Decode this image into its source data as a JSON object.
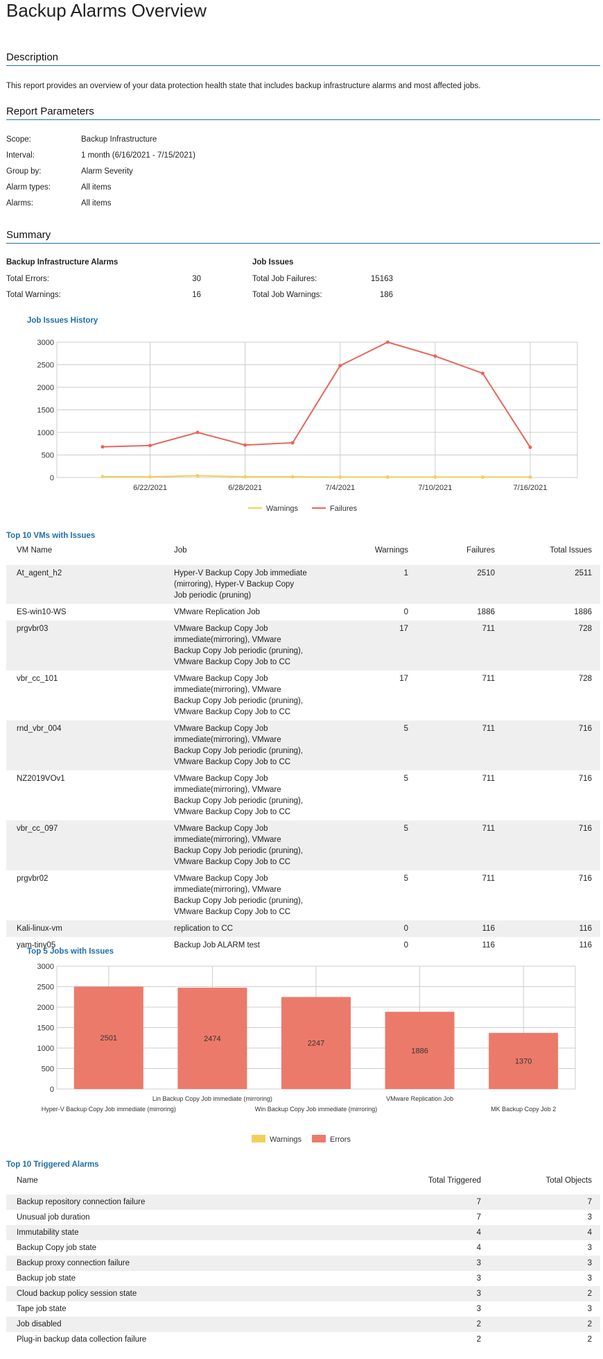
{
  "title": "Backup Alarms Overview",
  "description": {
    "heading": "Description",
    "text": "This report provides an overview of your data protection health state that includes backup infrastructure alarms and most affected jobs."
  },
  "parameters": {
    "heading": "Report Parameters",
    "items": [
      {
        "label": "Scope:",
        "value": "Backup Infrastructure"
      },
      {
        "label": "Interval:",
        "value": "1 month (6/16/2021 - 7/15/2021)"
      },
      {
        "label": "Group by:",
        "value": "Alarm Severity"
      },
      {
        "label": "Alarm types:",
        "value": "All items"
      },
      {
        "label": "Alarms:",
        "value": "All items"
      }
    ]
  },
  "summary": {
    "heading": "Summary",
    "infra": {
      "title": "Backup Infrastructure Alarms",
      "errors_label": "Total Errors:",
      "errors": "30",
      "warnings_label": "Total Warnings:",
      "warnings": "16"
    },
    "jobs": {
      "title": "Job Issues",
      "failures_label": "Total Job Failures:",
      "failures": "15163",
      "warnings_label": "Total Job Warnings:",
      "warnings": "186"
    }
  },
  "colors": {
    "accent": "#1f6fa8",
    "failures": "#e8665a",
    "warnings": "#f2cf5b",
    "bar": "#ec7a6a",
    "row_shade": "#efefef"
  },
  "chart_data": [
    {
      "type": "line",
      "title": "Job Issues History",
      "x": [
        "6/19/2021",
        "6/22/2021",
        "6/25/2021",
        "6/28/2021",
        "7/1/2021",
        "7/4/2021",
        "7/7/2021",
        "7/10/2021",
        "7/13/2021",
        "7/16/2021"
      ],
      "xticks": [
        "6/22/2021",
        "6/28/2021",
        "7/4/2021",
        "7/10/2021",
        "7/16/2021"
      ],
      "ylim": [
        0,
        3000
      ],
      "yticks": [
        0,
        500,
        1000,
        1500,
        2000,
        2500,
        3000
      ],
      "series": [
        {
          "name": "Warnings",
          "values": [
            20,
            15,
            40,
            15,
            15,
            10,
            10,
            10,
            10,
            10
          ]
        },
        {
          "name": "Failures",
          "values": [
            680,
            710,
            1000,
            720,
            770,
            2480,
            3000,
            2690,
            2310,
            670
          ]
        }
      ],
      "grid": true,
      "legend": "bottom"
    },
    {
      "type": "bar",
      "title": "Top 5 Jobs with Issues",
      "categories": [
        "Hyper-V Backup Copy Job immediate (mirroring)",
        "Lin Backup Copy Job immediate (mirroring)",
        "Win Backup Copy Job immediate (mirroring)",
        "VMware Replication Job",
        "MK Backup Copy Job 2"
      ],
      "ylim": [
        0,
        3000
      ],
      "yticks": [
        0,
        500,
        1000,
        1500,
        2000,
        2500,
        3000
      ],
      "series": [
        {
          "name": "Warnings",
          "values": [
            0,
            0,
            0,
            0,
            0
          ]
        },
        {
          "name": "Errors",
          "values": [
            2501,
            2474,
            2247,
            1886,
            1370
          ]
        }
      ],
      "grid": true,
      "legend": "bottom"
    }
  ],
  "vms": {
    "title": "Top 10 VMs with Issues",
    "headers": [
      "VM Name",
      "Job",
      "Warnings",
      "Failures",
      "Total Issues"
    ],
    "rows": [
      {
        "name": "At_agent_h2",
        "job": [
          "Hyper-V Backup Copy Job immediate",
          "(mirroring), Hyper-V Backup Copy",
          "Job periodic (pruning)"
        ],
        "warnings": "1",
        "failures": "2510",
        "total": "2511"
      },
      {
        "name": "ES-win10-WS",
        "job": [
          "VMware Replication Job"
        ],
        "warnings": "0",
        "failures": "1886",
        "total": "1886"
      },
      {
        "name": "prgvbr03",
        "job": [
          "VMware Backup Copy Job",
          "immediate(mirroring), VMware",
          "Backup Copy Job periodic (pruning),",
          "VMware Backup Copy Job to CC"
        ],
        "warnings": "17",
        "failures": "711",
        "total": "728"
      },
      {
        "name": "vbr_cc_101",
        "job": [
          "VMware Backup Copy Job",
          "immediate(mirroring), VMware",
          "Backup Copy Job periodic (pruning),",
          "VMware Backup Copy Job to CC"
        ],
        "warnings": "17",
        "failures": "711",
        "total": "728"
      },
      {
        "name": "rnd_vbr_004",
        "job": [
          "VMware Backup Copy Job",
          "immediate(mirroring), VMware",
          "Backup Copy Job periodic (pruning),",
          "VMware Backup Copy Job to CC"
        ],
        "warnings": "5",
        "failures": "711",
        "total": "716"
      },
      {
        "name": "NZ2019VOv1",
        "job": [
          "VMware Backup Copy Job",
          "immediate(mirroring), VMware",
          "Backup Copy Job periodic (pruning),",
          "VMware Backup Copy Job to CC"
        ],
        "warnings": "5",
        "failures": "711",
        "total": "716"
      },
      {
        "name": "vbr_cc_097",
        "job": [
          "VMware Backup Copy Job",
          "immediate(mirroring), VMware",
          "Backup Copy Job periodic (pruning),",
          "VMware Backup Copy Job to CC"
        ],
        "warnings": "5",
        "failures": "711",
        "total": "716"
      },
      {
        "name": "prgvbr02",
        "job": [
          "VMware Backup Copy Job",
          "immediate(mirroring), VMware",
          "Backup Copy Job periodic (pruning),",
          "VMware Backup Copy Job to CC"
        ],
        "warnings": "5",
        "failures": "711",
        "total": "716"
      },
      {
        "name": "Kali-linux-vm",
        "job": [
          "replication to CC"
        ],
        "warnings": "0",
        "failures": "116",
        "total": "116"
      },
      {
        "name": "yam-tiny05",
        "job": [
          "Backup Job ALARM test"
        ],
        "warnings": "0",
        "failures": "116",
        "total": "116"
      }
    ]
  },
  "alarms": {
    "title": "Top 10 Triggered Alarms",
    "headers": [
      "Name",
      "Total Triggered",
      "Total Objects"
    ],
    "rows": [
      {
        "name": "Backup repository connection failure",
        "triggered": "7",
        "objects": "7"
      },
      {
        "name": "Unusual job duration",
        "triggered": "7",
        "objects": "3"
      },
      {
        "name": "Immutability state",
        "triggered": "4",
        "objects": "4"
      },
      {
        "name": "Backup Copy job state",
        "triggered": "4",
        "objects": "3"
      },
      {
        "name": "Backup proxy connection failure",
        "triggered": "3",
        "objects": "3"
      },
      {
        "name": "Backup job state",
        "triggered": "3",
        "objects": "3"
      },
      {
        "name": "Cloud backup policy session state",
        "triggered": "3",
        "objects": "2"
      },
      {
        "name": "Tape job state",
        "triggered": "3",
        "objects": "3"
      },
      {
        "name": "Job disabled",
        "triggered": "2",
        "objects": "2"
      },
      {
        "name": "Plug-in backup data collection failure",
        "triggered": "2",
        "objects": "2"
      }
    ]
  }
}
